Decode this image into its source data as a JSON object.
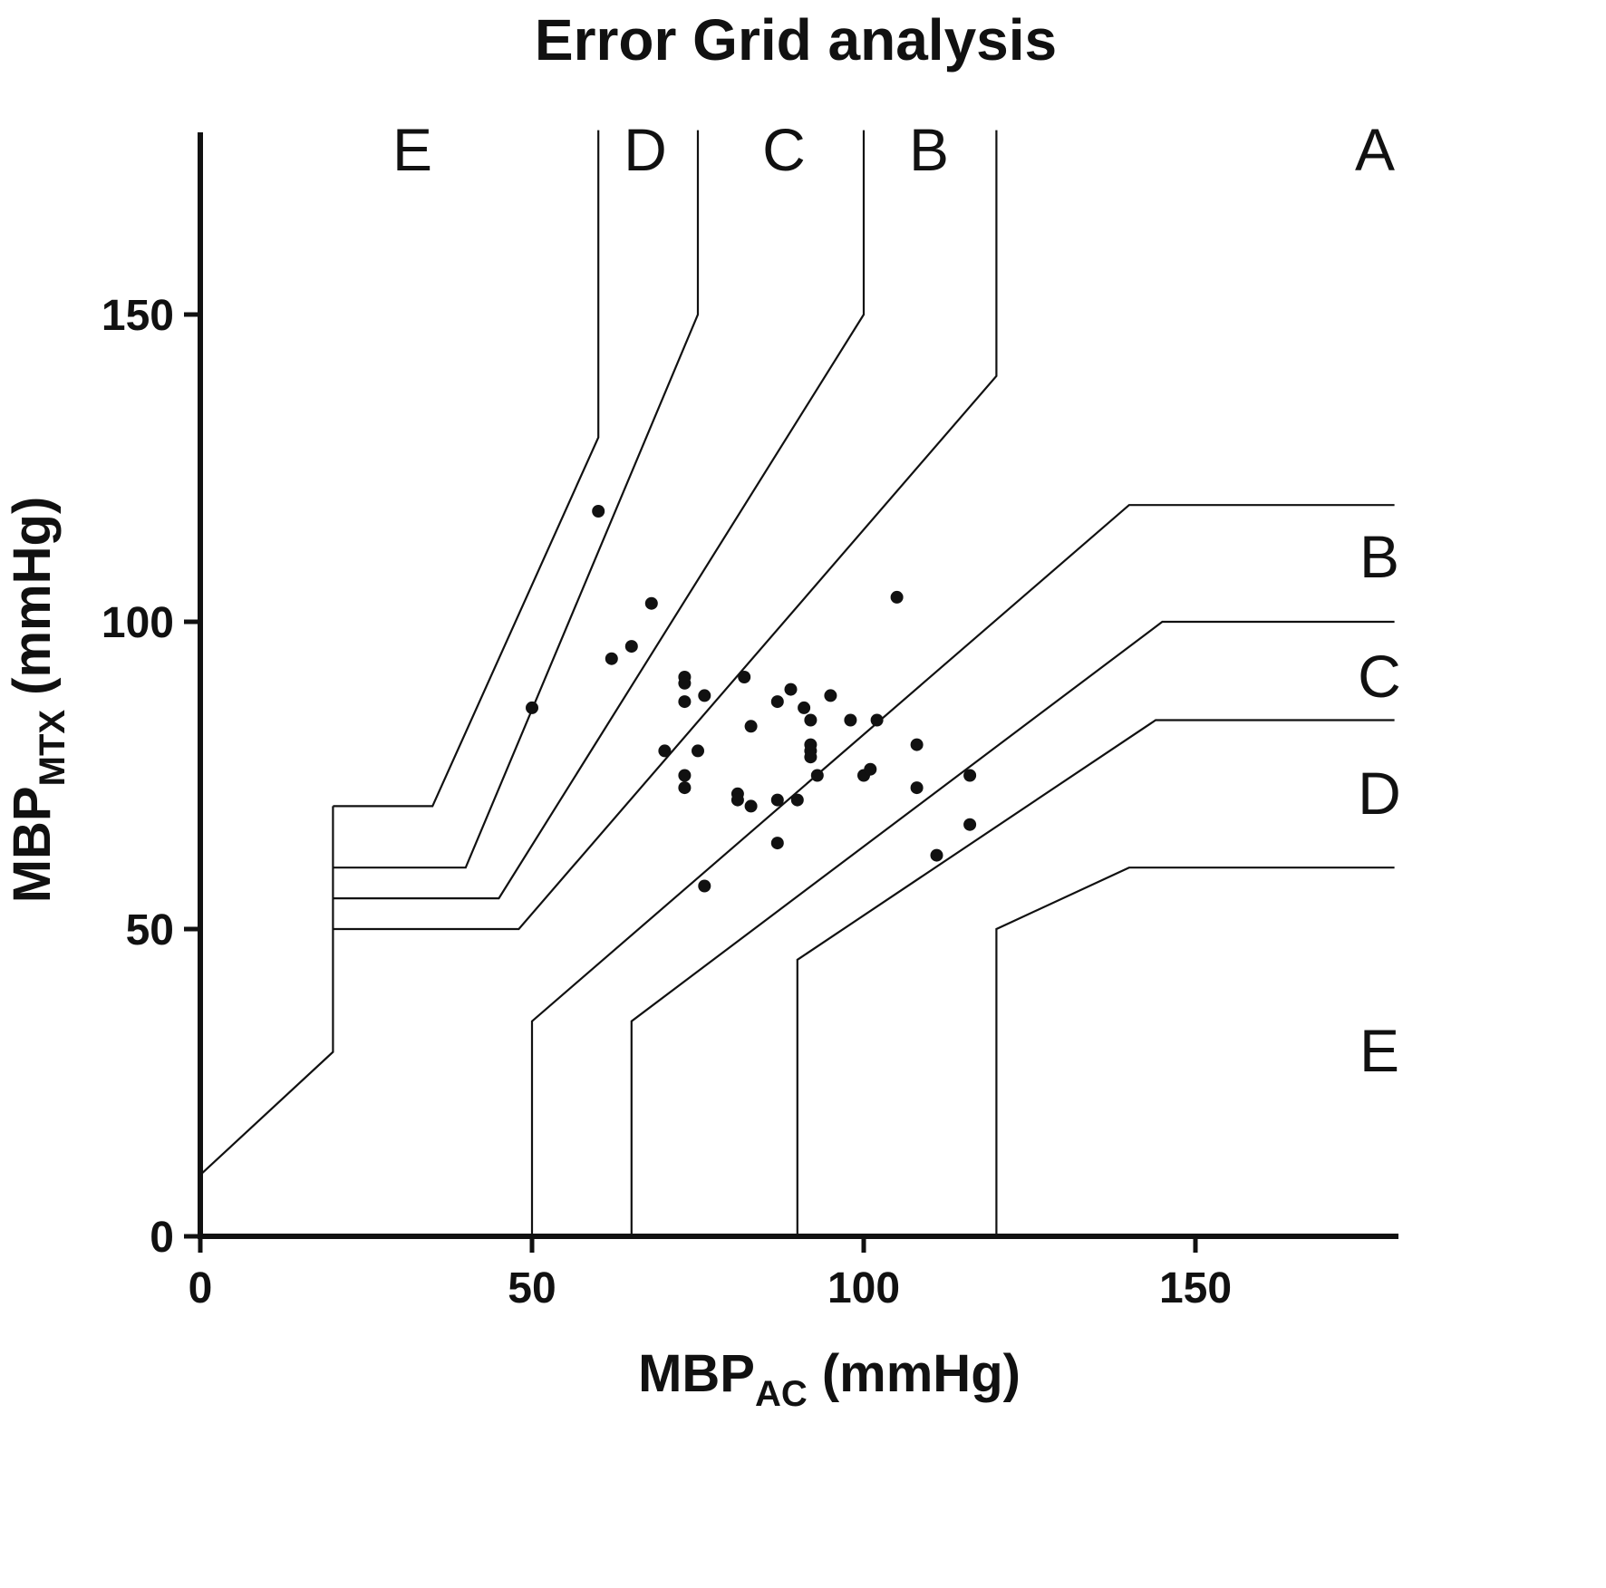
{
  "chart_data": {
    "type": "scatter",
    "title": "Error Grid analysis",
    "xlabel": {
      "main": "MBP",
      "sub": "AC",
      "unit": " (mmHg)"
    },
    "ylabel": {
      "main": "MBP",
      "sub": "MTX",
      "unit": " (mmHg)"
    },
    "xlim": [
      0,
      180
    ],
    "ylim": [
      0,
      180
    ],
    "xticks": [
      0,
      50,
      100,
      150
    ],
    "yticks": [
      0,
      50,
      100,
      150
    ],
    "grid": false,
    "zone_lines": [
      {
        "name": "E-D upper",
        "points": [
          [
            60,
            180
          ],
          [
            60,
            130
          ],
          [
            35,
            70
          ],
          [
            20,
            70
          ]
        ]
      },
      {
        "name": "D-C upper",
        "points": [
          [
            75,
            180
          ],
          [
            75,
            150
          ],
          [
            40,
            60
          ],
          [
            20,
            60
          ]
        ]
      },
      {
        "name": "C-B upper",
        "points": [
          [
            100,
            180
          ],
          [
            100,
            150
          ],
          [
            45,
            55
          ],
          [
            20,
            55
          ]
        ]
      },
      {
        "name": "B-A upper",
        "points": [
          [
            120,
            180
          ],
          [
            120,
            140
          ],
          [
            48,
            50
          ],
          [
            20,
            50
          ]
        ]
      },
      {
        "name": "left boundary",
        "points": [
          [
            20,
            70
          ],
          [
            20,
            30
          ],
          [
            0,
            10
          ]
        ]
      },
      {
        "name": "A-B lower",
        "points": [
          [
            50,
            0
          ],
          [
            50,
            35
          ],
          [
            140,
            119
          ],
          [
            180,
            119
          ]
        ]
      },
      {
        "name": "B-C lower",
        "points": [
          [
            65,
            0
          ],
          [
            65,
            35
          ],
          [
            145,
            100
          ],
          [
            180,
            100
          ]
        ]
      },
      {
        "name": "C-D lower",
        "points": [
          [
            90,
            0
          ],
          [
            90,
            45
          ],
          [
            144,
            84
          ],
          [
            180,
            84
          ]
        ]
      },
      {
        "name": "D-E lower",
        "points": [
          [
            120,
            0
          ],
          [
            120,
            50
          ],
          [
            140,
            60
          ],
          [
            180,
            60
          ]
        ]
      }
    ],
    "zone_labels_top": [
      "E",
      "D",
      "C",
      "B",
      "A"
    ],
    "zone_labels_right": [
      "B",
      "C",
      "D",
      "E"
    ],
    "points": [
      [
        50,
        86
      ],
      [
        60,
        118
      ],
      [
        62,
        94
      ],
      [
        65,
        96
      ],
      [
        68,
        103
      ],
      [
        70,
        79
      ],
      [
        73,
        91
      ],
      [
        73,
        90
      ],
      [
        73,
        87
      ],
      [
        73,
        75
      ],
      [
        73,
        73
      ],
      [
        75,
        79
      ],
      [
        76,
        88
      ],
      [
        76,
        57
      ],
      [
        81,
        72
      ],
      [
        81,
        71
      ],
      [
        82,
        91
      ],
      [
        83,
        83
      ],
      [
        83,
        70
      ],
      [
        87,
        87
      ],
      [
        87,
        71
      ],
      [
        87,
        64
      ],
      [
        89,
        89
      ],
      [
        90,
        71
      ],
      [
        91,
        86
      ],
      [
        92,
        84
      ],
      [
        92,
        80
      ],
      [
        92,
        79
      ],
      [
        92,
        78
      ],
      [
        93,
        75
      ],
      [
        95,
        88
      ],
      [
        98,
        84
      ],
      [
        100,
        75
      ],
      [
        101,
        76
      ],
      [
        102,
        84
      ],
      [
        105,
        104
      ],
      [
        108,
        80
      ],
      [
        108,
        73
      ],
      [
        111,
        62
      ],
      [
        116,
        75
      ],
      [
        116,
        67
      ]
    ]
  }
}
